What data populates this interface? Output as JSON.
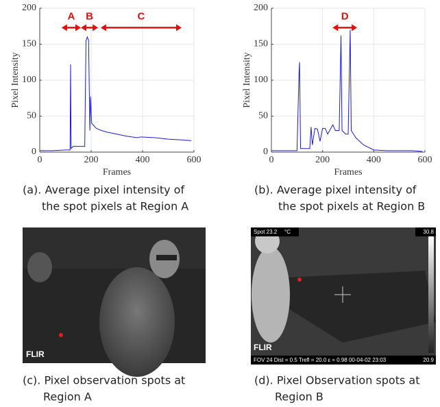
{
  "chart_data": [
    {
      "type": "line",
      "ylabel": "Pixel Intensity",
      "xlabel": "Frames",
      "xlim": [
        0,
        600
      ],
      "xticks": [
        0,
        200,
        400,
        600
      ],
      "ylim": [
        0,
        200
      ],
      "yticks": [
        0,
        50,
        100,
        150,
        200
      ],
      "grid": true,
      "x": [
        0,
        50,
        100,
        118,
        120,
        122,
        130,
        160,
        175,
        180,
        185,
        190,
        195,
        198,
        202,
        220,
        240,
        260,
        300,
        340,
        380,
        390,
        400,
        450,
        500,
        550,
        590
      ],
      "series": [
        {
          "color": "#1a1ad0",
          "values": [
            2,
            2,
            3,
            3,
            122,
            5,
            8,
            8,
            8,
            155,
            160,
            155,
            30,
            77,
            40,
            33,
            30,
            28,
            25,
            22,
            20,
            21,
            21,
            20,
            18,
            17,
            16
          ]
        }
      ],
      "annotations": [
        {
          "label": "A",
          "x": [
            85,
            160
          ],
          "y": 173
        },
        {
          "label": "B",
          "x": [
            160,
            227
          ],
          "y": 173
        },
        {
          "label": "C",
          "x": [
            237,
            552
          ],
          "y": 173
        }
      ]
    },
    {
      "type": "line",
      "ylabel": "Pixel Intensity",
      "xlabel": "Frames",
      "xlim": [
        0,
        600
      ],
      "xticks": [
        0,
        200,
        400,
        600
      ],
      "ylim": [
        0,
        200
      ],
      "yticks": [
        0,
        50,
        100,
        150,
        200
      ],
      "grid": true,
      "x": [
        0,
        100,
        108,
        110,
        114,
        150,
        155,
        160,
        170,
        180,
        190,
        200,
        210,
        220,
        240,
        250,
        265,
        272,
        276,
        290,
        300,
        308,
        312,
        330,
        360,
        400,
        450,
        500,
        550,
        590
      ],
      "series": [
        {
          "color": "#1a1ad0",
          "values": [
            2,
            2,
            110,
            125,
            5,
            5,
            35,
            10,
            33,
            32,
            15,
            33,
            33,
            25,
            38,
            30,
            30,
            162,
            30,
            25,
            25,
            170,
            30,
            20,
            10,
            3,
            2,
            2,
            2,
            1
          ]
        }
      ],
      "annotations": [
        {
          "label": "D",
          "x": [
            239,
            335
          ],
          "y": 173
        }
      ]
    }
  ],
  "captions": [
    [
      "(a). Average pixel intensity of",
      "the spot pixels at Region A"
    ],
    [
      "(b). Average pixel intensity of",
      "the spot pixels at Region B"
    ],
    [
      "(c). Pixel observation spots at",
      "Region A"
    ],
    [
      "(d). Pixel Observation spots at",
      "Region B"
    ]
  ],
  "photo_c": {
    "logo": "FLIR"
  },
  "photo_d": {
    "logo": "FLIR",
    "spot": "Spot 23.2",
    "unit": "°C",
    "scale_max": "30.8",
    "scale_min": "20.9",
    "footer": "FOV 24  Dist = 0.5  Trefl = 20.0  ε = 0.98  00-04-02 23:03"
  }
}
